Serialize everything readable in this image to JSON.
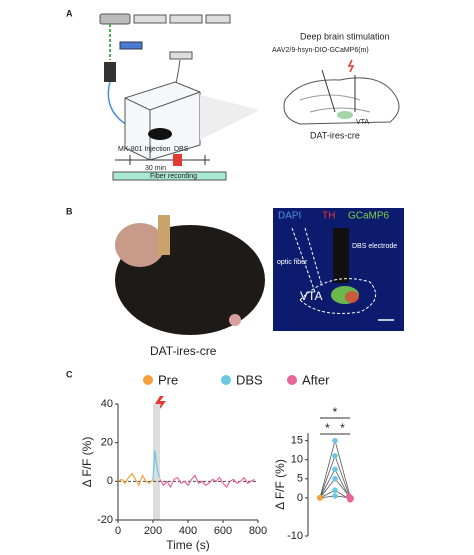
{
  "panel_a": {
    "label": "A",
    "stimulation": "Deep brain stimulation",
    "virus": "AAV2/9-hsyn-DIO-GCaMP6(m)",
    "region": "VTA",
    "mouse": "DAT-ires-cre",
    "injection": "MK-801 Injection",
    "dbs": "DBS",
    "interval": "30 min",
    "recording": "Fiber recording"
  },
  "panel_b": {
    "label": "B",
    "stain_1": "DAPI",
    "stain_2": "TH",
    "stain_3": "GCaMP6",
    "electrode": "DBS electrode",
    "fiber": "optic fiber",
    "region": "VTA",
    "mouse": "DAT-ires-cre"
  },
  "panel_c": {
    "label": "C"
  },
  "chart_data": [
    {
      "type": "line",
      "ylabel": "Δ F/F (%)",
      "xlabel": "Time (s)",
      "xlim": [
        0,
        800
      ],
      "xticks": [
        0,
        200,
        400,
        600,
        800
      ],
      "ylim": [
        -20,
        40
      ],
      "yticks": [
        -20,
        0,
        20,
        40
      ],
      "shaded_x": [
        200,
        240
      ],
      "series": [
        {
          "name": "Pre",
          "color": "#f4a13b",
          "x": [
            0,
            20,
            40,
            60,
            80,
            100,
            120,
            140,
            160,
            180,
            200
          ],
          "values": [
            0,
            1,
            -1,
            2,
            4,
            1,
            -2,
            3,
            0,
            -1,
            1
          ]
        },
        {
          "name": "DBS",
          "color": "#6ec6e0",
          "x": [
            200,
            205,
            210,
            215,
            220,
            225,
            230,
            235,
            240
          ],
          "values": [
            1,
            8,
            16,
            13,
            9,
            6,
            4,
            3,
            2
          ]
        },
        {
          "name": "After",
          "color": "#e8659a",
          "x": [
            240,
            260,
            280,
            300,
            320,
            340,
            360,
            380,
            400,
            420,
            440,
            460,
            480,
            500,
            520,
            540,
            560,
            580,
            600,
            620,
            640,
            660,
            680,
            700,
            720,
            740,
            760,
            780
          ],
          "values": [
            1,
            -2,
            0,
            -3,
            1,
            2,
            -1,
            0,
            -2,
            1,
            3,
            -1,
            0,
            -2,
            -1,
            1,
            0,
            2,
            -1,
            -3,
            0,
            1,
            -1,
            0,
            2,
            -1,
            0,
            1
          ]
        }
      ]
    },
    {
      "type": "dot",
      "ylabel": "Δ F/F (%)",
      "ylim": [
        -10,
        17
      ],
      "yticks": [
        -10,
        0,
        5,
        10,
        15
      ],
      "annotations": [
        "*",
        "*",
        "*"
      ],
      "series": [
        {
          "name": "Pre",
          "color": "#f4a13b",
          "values": [
            0,
            0,
            0,
            0,
            0,
            0
          ]
        },
        {
          "name": "DBS",
          "color": "#6ec6e0",
          "values": [
            15,
            11,
            7.5,
            5,
            2,
            0.5
          ]
        },
        {
          "name": "After",
          "color": "#e8659a",
          "values": [
            0.5,
            0,
            -0.3,
            0.2,
            -0.5,
            0
          ]
        }
      ]
    }
  ]
}
